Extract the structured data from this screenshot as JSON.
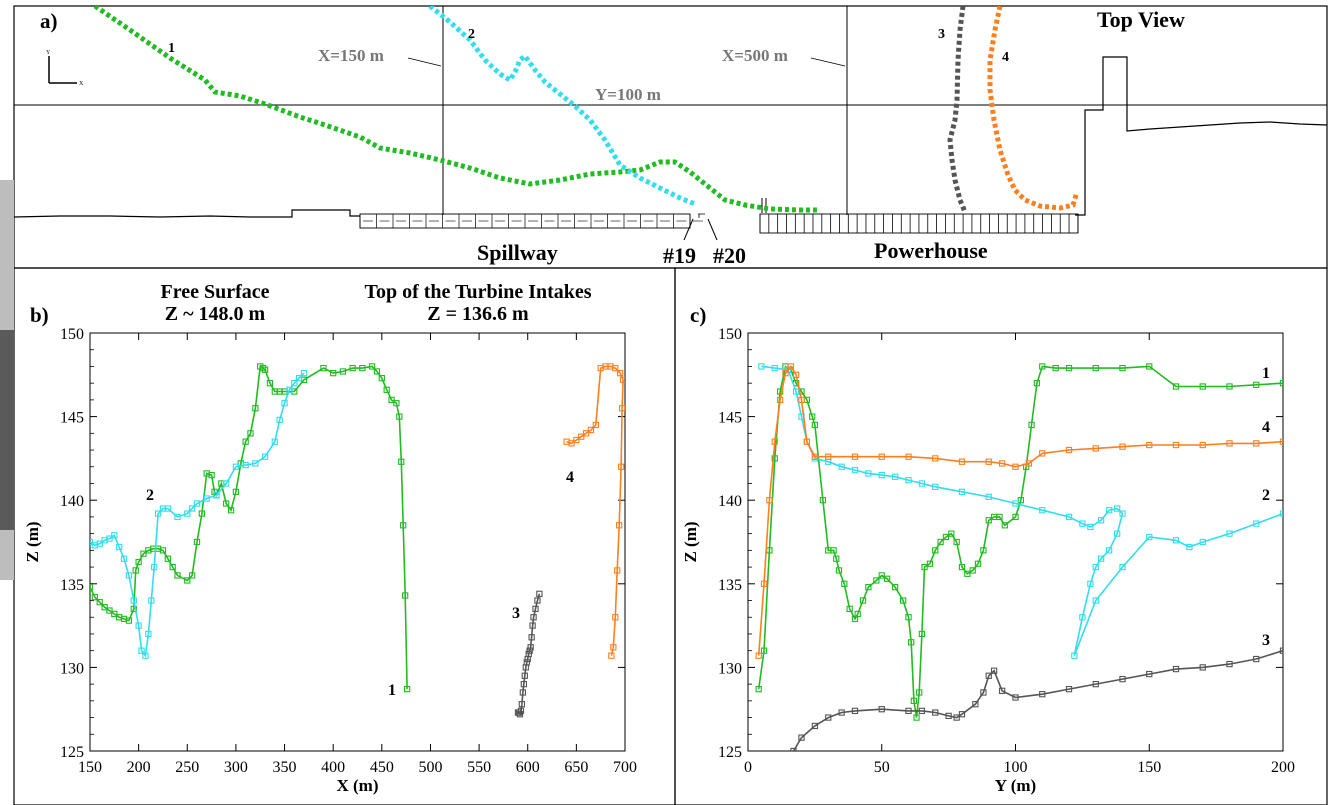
{
  "panel_a": {
    "label": "a)",
    "title": "Top View",
    "x_line_1": "X=150 m",
    "x_line_2": "X=500 m",
    "y_line": "Y=100 m",
    "spillway": "Spillway",
    "bay_19": "#19",
    "bay_20": "#20",
    "powerhouse": "Powerhouse",
    "axes_icon_y": "Y",
    "axes_icon_x": "X",
    "track_labels": [
      "1",
      "2",
      "3",
      "4"
    ]
  },
  "panel_b": {
    "label": "b)",
    "free_surface_title": "Free Surface",
    "free_surface_value": "Z ~ 148.0 m",
    "intake_title": "Top of the Turbine Intakes",
    "intake_value": "Z = 136.6 m"
  },
  "panel_c": {
    "label": "c)"
  },
  "colors": {
    "track_1": "#22bb22",
    "track_2": "#33ddee",
    "track_3": "#555555",
    "track_4": "#ff7f1e"
  },
  "chart_data": [
    {
      "type": "line",
      "panel": "b",
      "xlabel": "X (m)",
      "ylabel": "Z (m)",
      "xlim": [
        150,
        700
      ],
      "ylim": [
        125,
        150
      ],
      "xticks": [
        150,
        200,
        250,
        300,
        350,
        400,
        450,
        500,
        550,
        600,
        650,
        700
      ],
      "yticks": [
        125,
        130,
        135,
        140,
        145,
        150
      ],
      "series": [
        {
          "name": "1",
          "x": [
            150,
            155,
            160,
            165,
            170,
            175,
            180,
            185,
            190,
            195,
            197,
            200,
            205,
            210,
            215,
            220,
            225,
            230,
            235,
            240,
            250,
            255,
            260,
            265,
            270,
            275,
            278,
            280,
            285,
            290,
            295,
            300,
            305,
            310,
            315,
            320,
            325,
            328,
            330,
            335,
            340,
            345,
            350,
            360,
            370,
            390,
            400,
            410,
            420,
            430,
            440,
            445,
            450,
            455,
            460,
            465,
            468,
            470,
            472,
            474,
            476
          ],
          "y": [
            134.8,
            134.2,
            133.9,
            133.6,
            133.4,
            133.2,
            133.0,
            132.9,
            132.8,
            133.5,
            135.8,
            136.3,
            136.8,
            137.0,
            137.1,
            137.1,
            137.0,
            136.5,
            136.0,
            135.5,
            135.2,
            135.5,
            137.5,
            139.2,
            141.6,
            141.5,
            140.5,
            140.3,
            141.0,
            139.8,
            139.4,
            140.5,
            142.2,
            143.5,
            144.0,
            145.5,
            148.0,
            147.9,
            147.8,
            147.0,
            146.5,
            146.5,
            146.5,
            146.5,
            147.2,
            147.9,
            147.6,
            147.7,
            147.9,
            147.9,
            148.0,
            147.7,
            147.3,
            146.6,
            146.0,
            145.8,
            145.0,
            142.3,
            138.5,
            134.3,
            128.7
          ]
        },
        {
          "name": "2",
          "x": [
            150,
            155,
            160,
            165,
            170,
            175,
            180,
            185,
            190,
            195,
            200,
            203,
            207,
            210,
            213,
            216,
            220,
            225,
            230,
            240,
            250,
            255,
            260,
            270,
            280,
            290,
            300,
            310,
            320,
            330,
            340,
            345,
            350,
            355,
            360,
            365,
            370
          ],
          "y": [
            137.5,
            137.3,
            137.4,
            137.6,
            137.7,
            137.9,
            137.2,
            136.5,
            135.5,
            134.0,
            132.5,
            131.0,
            130.7,
            132.0,
            134.0,
            136.0,
            139.2,
            139.5,
            139.5,
            139.0,
            139.2,
            139.5,
            139.8,
            140.1,
            140.3,
            141.0,
            142.0,
            142.1,
            142.2,
            142.6,
            143.5,
            144.8,
            145.8,
            146.6,
            147.0,
            147.3,
            147.6
          ]
        },
        {
          "name": "3",
          "x": [
            590,
            591,
            592,
            593,
            594,
            595,
            596,
            597,
            598,
            599,
            600,
            601,
            602,
            603,
            604,
            605,
            606,
            608,
            610,
            612
          ],
          "y": [
            127.3,
            127.3,
            127.2,
            127.4,
            127.8,
            128.5,
            129.0,
            129.5,
            130.0,
            130.3,
            130.5,
            130.8,
            131.0,
            131.2,
            131.8,
            132.5,
            133.0,
            133.5,
            134.0,
            134.4
          ]
        },
        {
          "name": "4",
          "x": [
            640,
            645,
            650,
            655,
            660,
            665,
            670,
            675,
            680,
            685,
            690,
            695,
            698,
            697,
            696,
            694,
            692,
            690,
            688,
            686
          ],
          "y": [
            143.5,
            143.4,
            143.6,
            143.8,
            144.0,
            144.2,
            144.5,
            147.9,
            148.0,
            148.0,
            147.9,
            147.6,
            147.2,
            145.5,
            142.0,
            138.5,
            135.8,
            133.0,
            131.2,
            130.7
          ]
        }
      ]
    },
    {
      "type": "line",
      "panel": "c",
      "xlabel": "Y (m)",
      "ylabel": "Z (m)",
      "xlim": [
        0,
        200
      ],
      "ylim": [
        125,
        150
      ],
      "xticks": [
        0,
        50,
        100,
        150,
        200
      ],
      "yticks": [
        125,
        130,
        135,
        140,
        145,
        150
      ],
      "series": [
        {
          "name": "1",
          "x": [
            4,
            6,
            8,
            10,
            12,
            14,
            16,
            18,
            20,
            22,
            24,
            25,
            28,
            30,
            32,
            33,
            34,
            36,
            38,
            40,
            41,
            43,
            45,
            48,
            50,
            52,
            55,
            58,
            60,
            61,
            62,
            63,
            64,
            65,
            66,
            68,
            70,
            72,
            74,
            76,
            78,
            80,
            82,
            84,
            86,
            88,
            90,
            92,
            94,
            96,
            100,
            102,
            104,
            106,
            108,
            110,
            115,
            120,
            130,
            140,
            150,
            160,
            170,
            180,
            190,
            200
          ],
          "y": [
            128.7,
            131.0,
            137.0,
            142.5,
            146.5,
            148.0,
            147.8,
            147.0,
            146.5,
            146.0,
            145.0,
            144.5,
            140.0,
            137.0,
            137.0,
            136.5,
            135.8,
            135.0,
            133.5,
            132.9,
            133.2,
            134.0,
            134.8,
            135.2,
            135.5,
            135.3,
            134.8,
            134.0,
            133.0,
            131.5,
            128.0,
            127.0,
            128.5,
            132.0,
            136.0,
            136.2,
            137.0,
            137.5,
            137.8,
            138.0,
            137.5,
            136.0,
            135.6,
            135.8,
            136.2,
            137.0,
            138.8,
            139.0,
            139.0,
            138.5,
            139.0,
            140.0,
            142.0,
            144.5,
            147.0,
            148.0,
            147.9,
            147.9,
            147.9,
            147.9,
            148.0,
            146.8,
            146.8,
            146.8,
            146.9,
            147.0
          ]
        },
        {
          "name": "2",
          "x": [
            5,
            10,
            15,
            18,
            20,
            22,
            25,
            30,
            35,
            40,
            45,
            50,
            55,
            60,
            65,
            70,
            80,
            90,
            100,
            110,
            120,
            125,
            128,
            132,
            135,
            138,
            140,
            138,
            135,
            132,
            130,
            128,
            125,
            122,
            130,
            140,
            150,
            160,
            165,
            170,
            180,
            190,
            200
          ],
          "y": [
            148.0,
            147.9,
            147.8,
            146.5,
            145.0,
            143.5,
            142.5,
            142.3,
            142.0,
            141.8,
            141.6,
            141.5,
            141.4,
            141.2,
            141.0,
            140.8,
            140.5,
            140.2,
            139.8,
            139.4,
            139.0,
            138.6,
            138.4,
            138.8,
            139.4,
            139.5,
            139.2,
            138.0,
            137.0,
            136.5,
            136.0,
            135.0,
            133.0,
            130.7,
            134.0,
            136.0,
            137.8,
            137.6,
            137.2,
            137.5,
            138.0,
            138.6,
            139.2
          ]
        },
        {
          "name": "3",
          "x": [
            17,
            20,
            25,
            30,
            35,
            40,
            50,
            60,
            65,
            70,
            75,
            78,
            80,
            85,
            88,
            90,
            92,
            95,
            100,
            110,
            120,
            130,
            140,
            150,
            160,
            170,
            180,
            190,
            200
          ],
          "y": [
            125.0,
            125.8,
            126.5,
            127.0,
            127.3,
            127.4,
            127.5,
            127.4,
            127.4,
            127.3,
            127.1,
            127.0,
            127.2,
            127.8,
            128.5,
            129.5,
            129.8,
            128.6,
            128.2,
            128.4,
            128.7,
            129.0,
            129.3,
            129.6,
            129.9,
            130.0,
            130.2,
            130.5,
            131.0
          ]
        },
        {
          "name": "4",
          "x": [
            4,
            6,
            8,
            10,
            12,
            14,
            16,
            18,
            20,
            22,
            25,
            30,
            40,
            50,
            60,
            70,
            80,
            90,
            95,
            100,
            105,
            110,
            120,
            130,
            140,
            150,
            160,
            170,
            180,
            190,
            200
          ],
          "y": [
            130.7,
            135.0,
            140.0,
            143.5,
            146.0,
            147.6,
            148.0,
            147.5,
            146.0,
            143.5,
            142.6,
            142.6,
            142.6,
            142.6,
            142.6,
            142.5,
            142.3,
            142.3,
            142.2,
            142.0,
            142.2,
            142.8,
            143.0,
            143.1,
            143.2,
            143.3,
            143.3,
            143.3,
            143.4,
            143.4,
            143.5
          ]
        }
      ]
    }
  ]
}
